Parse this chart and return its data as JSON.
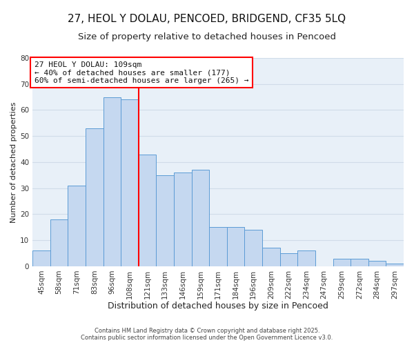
{
  "title": "27, HEOL Y DOLAU, PENCOED, BRIDGEND, CF35 5LQ",
  "subtitle": "Size of property relative to detached houses in Pencoed",
  "xlabel": "Distribution of detached houses by size in Pencoed",
  "ylabel": "Number of detached properties",
  "categories": [
    "45sqm",
    "58sqm",
    "71sqm",
    "83sqm",
    "96sqm",
    "108sqm",
    "121sqm",
    "133sqm",
    "146sqm",
    "159sqm",
    "171sqm",
    "184sqm",
    "196sqm",
    "209sqm",
    "222sqm",
    "234sqm",
    "247sqm",
    "259sqm",
    "272sqm",
    "284sqm",
    "297sqm"
  ],
  "values": [
    6,
    18,
    31,
    53,
    65,
    64,
    43,
    35,
    36,
    37,
    15,
    15,
    14,
    7,
    5,
    6,
    0,
    3,
    3,
    2,
    1
  ],
  "bar_color": "#c5d8f0",
  "bar_edge_color": "#5b9bd5",
  "vline_color": "red",
  "vline_bar_index": 5,
  "ylim": [
    0,
    80
  ],
  "yticks": [
    0,
    10,
    20,
    30,
    40,
    50,
    60,
    70,
    80
  ],
  "annotation_title": "27 HEOL Y DOLAU: 109sqm",
  "annotation_line1": "← 40% of detached houses are smaller (177)",
  "annotation_line2": "60% of semi-detached houses are larger (265) →",
  "annotation_box_color": "white",
  "annotation_box_edge_color": "red",
  "grid_color": "#d0dce8",
  "background_color": "#e8f0f8",
  "footer1": "Contains HM Land Registry data © Crown copyright and database right 2025.",
  "footer2": "Contains public sector information licensed under the Open Government Licence v3.0.",
  "title_fontsize": 11,
  "subtitle_fontsize": 9.5,
  "xlabel_fontsize": 9,
  "ylabel_fontsize": 8,
  "tick_fontsize": 7.5,
  "annotation_fontsize": 8,
  "footer_fontsize": 6
}
